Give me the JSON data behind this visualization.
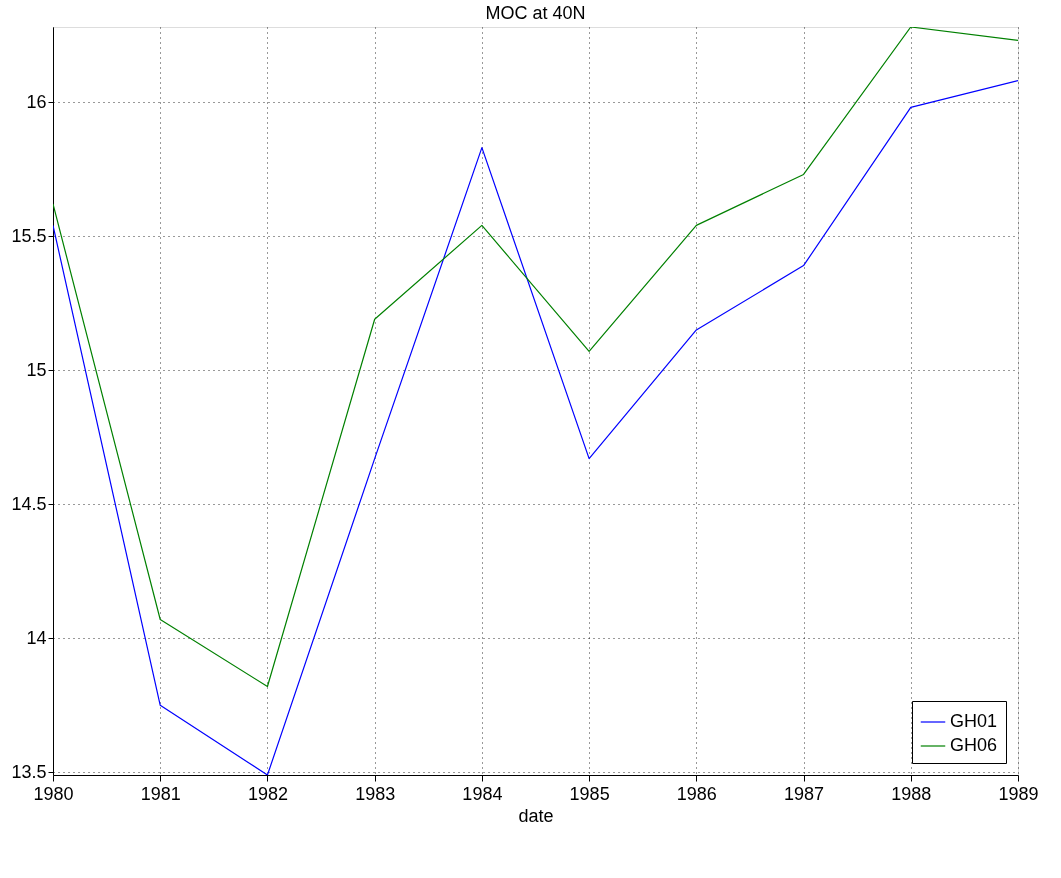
{
  "chart_data": {
    "type": "line",
    "title": "MOC at 40N",
    "xlabel": "date",
    "x": [
      1980,
      1981,
      1982,
      1983,
      1984,
      1985,
      1986,
      1987,
      1988,
      1989
    ],
    "series": [
      {
        "name": "GH01",
        "color": "#0000ff",
        "values": [
          15.54,
          13.75,
          13.49,
          14.67,
          15.83,
          14.67,
          15.15,
          15.39,
          15.98,
          16.08
        ]
      },
      {
        "name": "GH06",
        "color": "#008000",
        "values": [
          15.62,
          14.07,
          13.82,
          15.19,
          15.54,
          15.07,
          15.54,
          15.73,
          16.28,
          16.23
        ]
      }
    ],
    "xlim": [
      1980,
      1989
    ],
    "xticks": [
      1980,
      1981,
      1982,
      1983,
      1984,
      1985,
      1986,
      1987,
      1988,
      1989
    ],
    "ylim": [
      13.49,
      16.28
    ],
    "yticks": [
      {
        "value": 13.5,
        "label": "13.5"
      },
      14,
      {
        "value": 14.5,
        "label": "14.5"
      },
      15,
      {
        "value": 15.5,
        "label": "15.5"
      },
      16
    ],
    "grid": true,
    "legend": "bottom right",
    "marker": "none",
    "line_style": "solid"
  }
}
